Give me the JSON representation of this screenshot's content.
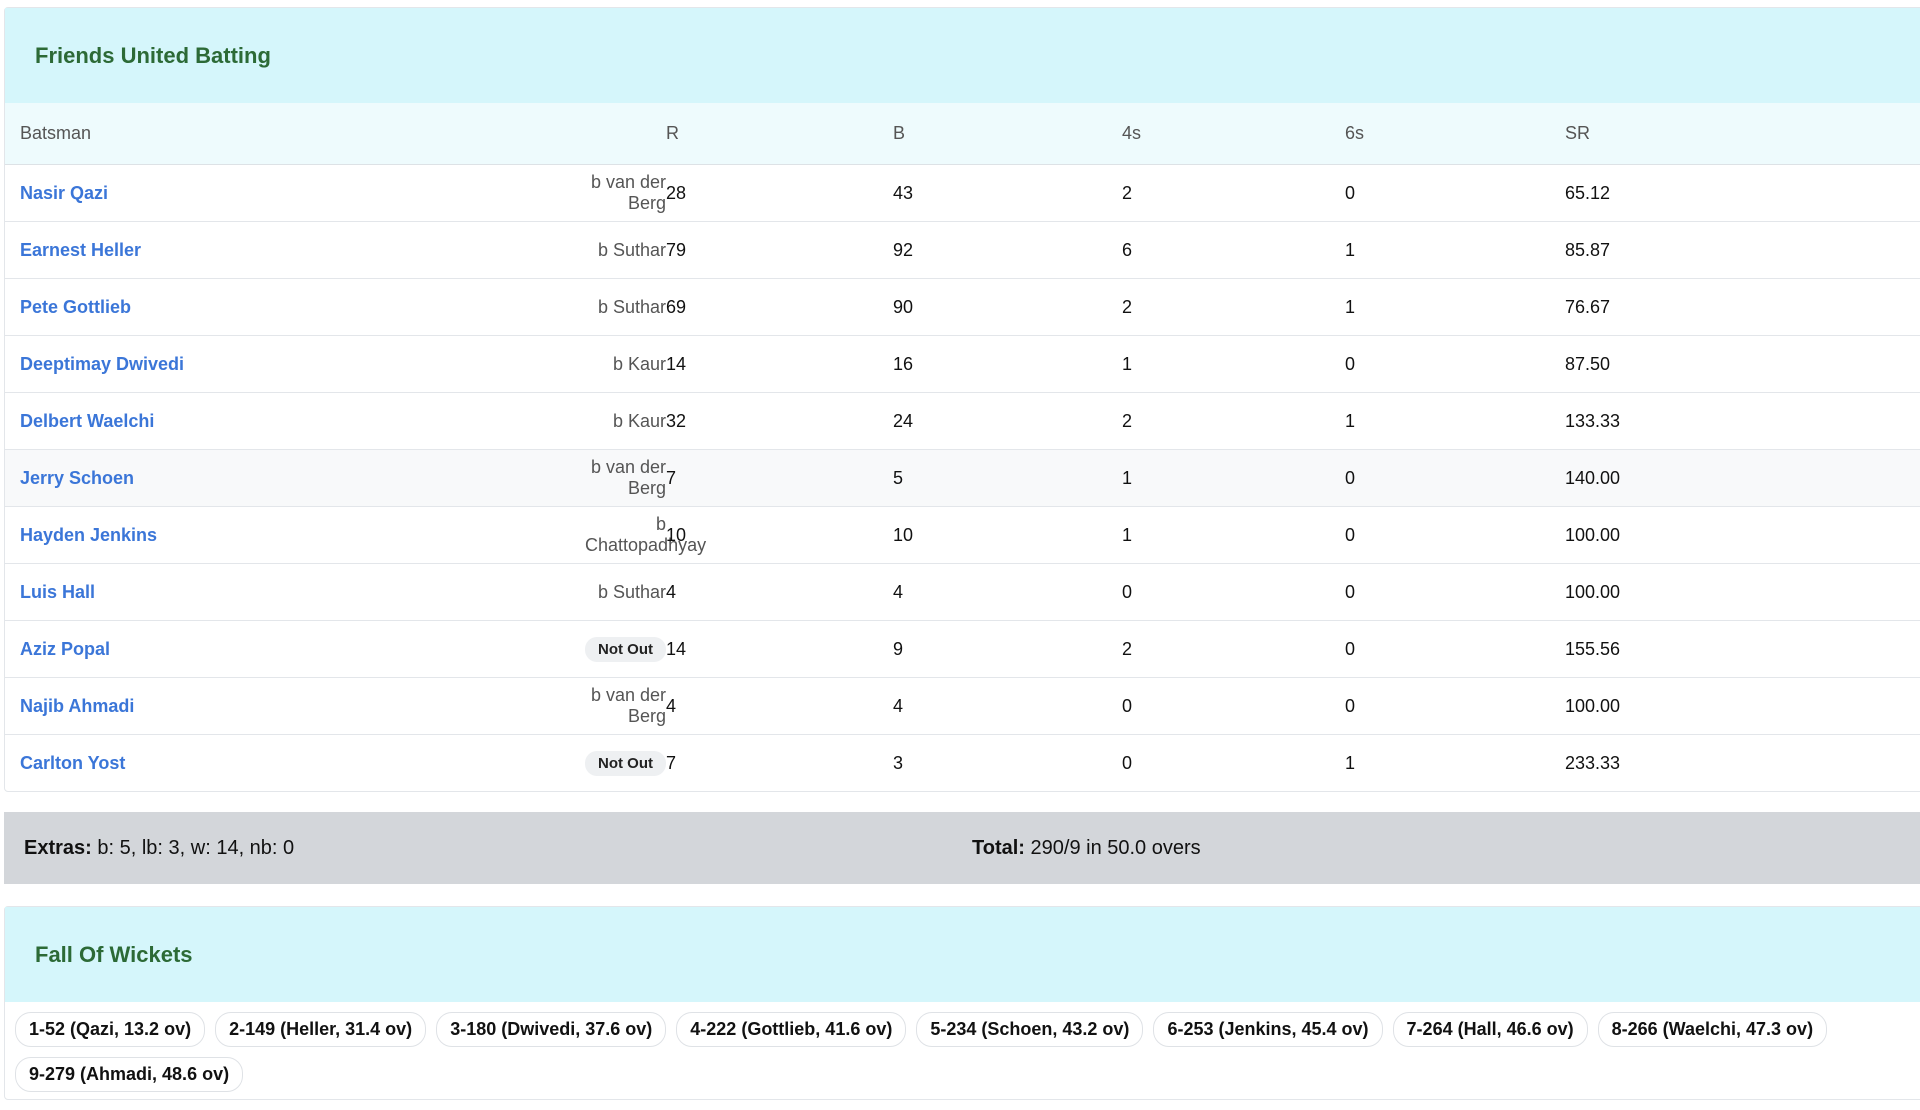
{
  "batting": {
    "title": "Friends United Batting",
    "columns": {
      "batsman": "Batsman",
      "r": "R",
      "b": "B",
      "fours": "4s",
      "sixes": "6s",
      "sr": "SR"
    },
    "rows": [
      {
        "name": "Nasir Qazi",
        "dismissal": "b van der Berg",
        "r": "28",
        "b": "43",
        "fours": "2",
        "sixes": "0",
        "sr": "65.12"
      },
      {
        "name": "Earnest Heller",
        "dismissal": "b Suthar",
        "r": "79",
        "b": "92",
        "fours": "6",
        "sixes": "1",
        "sr": "85.87"
      },
      {
        "name": "Pete Gottlieb",
        "dismissal": "b Suthar",
        "r": "69",
        "b": "90",
        "fours": "2",
        "sixes": "1",
        "sr": "76.67"
      },
      {
        "name": "Deeptimay Dwivedi",
        "dismissal": "b Kaur",
        "r": "14",
        "b": "16",
        "fours": "1",
        "sixes": "0",
        "sr": "87.50"
      },
      {
        "name": "Delbert Waelchi",
        "dismissal": "b Kaur",
        "r": "32",
        "b": "24",
        "fours": "2",
        "sixes": "1",
        "sr": "133.33"
      },
      {
        "name": "Jerry Schoen",
        "dismissal": "b van der Berg",
        "r": "7",
        "b": "5",
        "fours": "1",
        "sixes": "0",
        "sr": "140.00"
      },
      {
        "name": "Hayden Jenkins",
        "dismissal": "b Chattopadhyay",
        "r": "10",
        "b": "10",
        "fours": "1",
        "sixes": "0",
        "sr": "100.00"
      },
      {
        "name": "Luis Hall",
        "dismissal": "b Suthar",
        "r": "4",
        "b": "4",
        "fours": "0",
        "sixes": "0",
        "sr": "100.00"
      },
      {
        "name": "Aziz Popal",
        "status": "Not Out",
        "r": "14",
        "b": "9",
        "fours": "2",
        "sixes": "0",
        "sr": "155.56"
      },
      {
        "name": "Najib Ahmadi",
        "dismissal": "b van der Berg",
        "r": "4",
        "b": "4",
        "fours": "0",
        "sixes": "0",
        "sr": "100.00"
      },
      {
        "name": "Carlton Yost",
        "status": "Not Out",
        "r": "7",
        "b": "3",
        "fours": "0",
        "sixes": "1",
        "sr": "233.33"
      }
    ]
  },
  "summary": {
    "extras": {
      "label": "Extras:",
      "value": "b: 5, lb: 3, w: 14, nb: 0"
    },
    "total": {
      "label": "Total:",
      "value": "290/9 in 50.0 overs"
    }
  },
  "fall_of_wickets": {
    "title": "Fall Of Wickets",
    "items": [
      "1-52 (Qazi, 13.2 ov)",
      "2-149 (Heller, 31.4 ov)",
      "3-180 (Dwivedi, 37.6 ov)",
      "4-222 (Gottlieb, 41.6 ov)",
      "5-234 (Schoen, 43.2 ov)",
      "6-253 (Jenkins, 45.4 ov)",
      "7-264 (Hall, 46.6 ov)",
      "8-266 (Waelchi, 47.3 ov)",
      "9-279 (Ahmadi, 48.6 ov)"
    ]
  }
}
